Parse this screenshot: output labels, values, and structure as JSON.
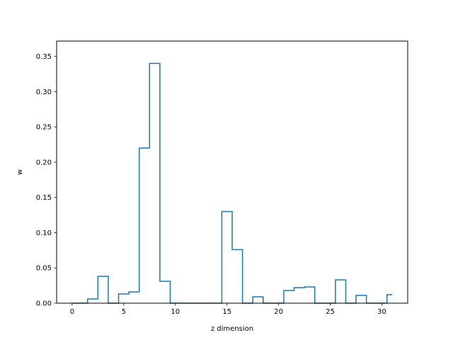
{
  "chart_data": {
    "type": "step",
    "title": "",
    "xlabel": "z dimension",
    "ylabel": "w",
    "xlim": [
      -1.5,
      32.5
    ],
    "ylim": [
      0,
      0.3717
    ],
    "xticks": [
      0,
      5,
      10,
      15,
      20,
      25,
      30
    ],
    "xtick_labels": [
      "0",
      "5",
      "10",
      "15",
      "20",
      "25",
      "30"
    ],
    "yticks": [
      0.0,
      0.05,
      0.1,
      0.15,
      0.2,
      0.25,
      0.3,
      0.35
    ],
    "ytick_labels": [
      "0.00",
      "0.05",
      "0.10",
      "0.15",
      "0.20",
      "0.25",
      "0.30",
      "0.35"
    ],
    "grid": false,
    "step_where": "mid",
    "line_color": "#1f77b4",
    "x": [
      0,
      1,
      2,
      3,
      4,
      5,
      6,
      7,
      8,
      9,
      10,
      11,
      12,
      13,
      14,
      15,
      16,
      17,
      18,
      19,
      20,
      21,
      22,
      23,
      24,
      25,
      26,
      27,
      28,
      29,
      30,
      31
    ],
    "y": [
      0,
      0,
      0.006,
      0.038,
      0,
      0.013,
      0.016,
      0.22,
      0.34,
      0.031,
      0,
      0,
      0,
      0,
      0,
      0.13,
      0.076,
      0,
      0.009,
      0,
      0,
      0.018,
      0.022,
      0.023,
      0,
      0,
      0.033,
      0,
      0.011,
      0,
      0,
      0.012
    ]
  }
}
